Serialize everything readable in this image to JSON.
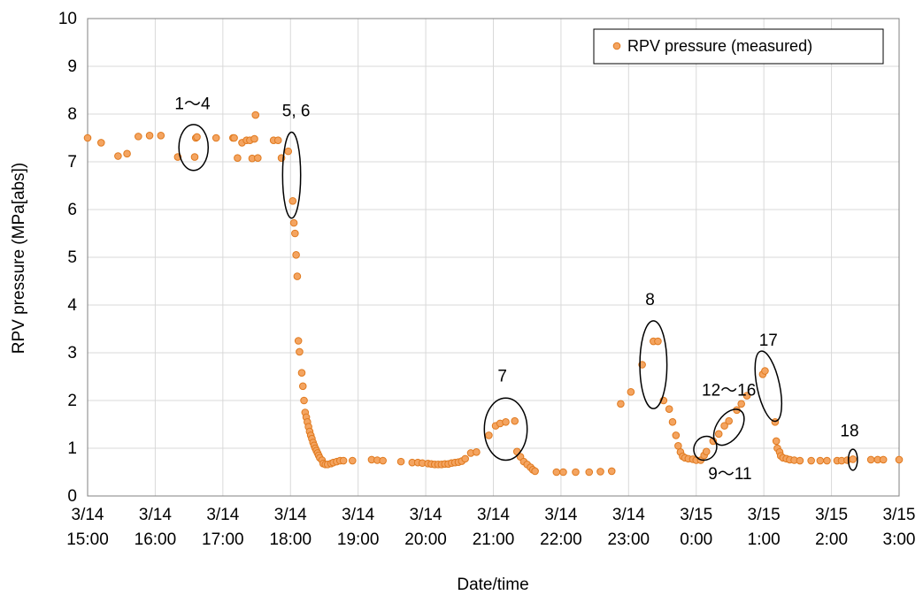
{
  "chart_data": {
    "type": "scatter",
    "xlabel": "Date/time",
    "ylabel": "RPV pressure (MPa[abs])",
    "xlim": [
      "3/14 15:00",
      "3/15 3:00"
    ],
    "ylim": [
      0,
      10
    ],
    "yticks": [
      "0",
      "1",
      "2",
      "3",
      "4",
      "5",
      "6",
      "7",
      "8",
      "9",
      "10"
    ],
    "xticks": [
      {
        "date": "3/14",
        "time": "15:00"
      },
      {
        "date": "3/14",
        "time": "16:00"
      },
      {
        "date": "3/14",
        "time": "17:00"
      },
      {
        "date": "3/14",
        "time": "18:00"
      },
      {
        "date": "3/14",
        "time": "19:00"
      },
      {
        "date": "3/14",
        "time": "20:00"
      },
      {
        "date": "3/14",
        "time": "21:00"
      },
      {
        "date": "3/14",
        "time": "22:00"
      },
      {
        "date": "3/14",
        "time": "23:00"
      },
      {
        "date": "3/15",
        "time": "0:00"
      },
      {
        "date": "3/15",
        "time": "1:00"
      },
      {
        "date": "3/15",
        "time": "2:00"
      },
      {
        "date": "3/15",
        "time": "3:00"
      }
    ],
    "grid": true,
    "legend_position": "top-right",
    "series": [
      {
        "name": "RPV pressure (measured)",
        "color": "#f4a460",
        "edge_color": "#e07a1f",
        "points": [
          [
            "3/14 15:00",
            7.5
          ],
          [
            "3/14 15:12",
            7.4
          ],
          [
            "3/14 15:27",
            7.12
          ],
          [
            "3/14 15:35",
            7.17
          ],
          [
            "3/14 15:45",
            7.53
          ],
          [
            "3/14 15:55",
            7.55
          ],
          [
            "3/14 16:05",
            7.55
          ],
          [
            "3/14 16:20",
            7.1
          ],
          [
            "3/14 16:35",
            7.1
          ],
          [
            "3/14 16:36",
            7.5
          ],
          [
            "3/14 16:37",
            7.52
          ],
          [
            "3/14 16:54",
            7.5
          ],
          [
            "3/14 17:09",
            7.5
          ],
          [
            "3/14 17:10",
            7.5
          ],
          [
            "3/14 17:13",
            7.08
          ],
          [
            "3/14 17:17",
            7.4
          ],
          [
            "3/14 17:21",
            7.45
          ],
          [
            "3/14 17:24",
            7.45
          ],
          [
            "3/14 17:26",
            7.07
          ],
          [
            "3/14 17:28",
            7.48
          ],
          [
            "3/14 17:29",
            7.98
          ],
          [
            "3/14 17:31",
            7.08
          ],
          [
            "3/14 17:45",
            7.45
          ],
          [
            "3/14 17:49",
            7.45
          ],
          [
            "3/14 17:52",
            7.08
          ],
          [
            "3/14 17:58",
            7.22
          ],
          [
            "3/14 18:02",
            6.18
          ],
          [
            "3/14 18:03",
            5.72
          ],
          [
            "3/14 18:04",
            5.5
          ],
          [
            "3/14 18:05",
            5.05
          ],
          [
            "3/14 18:06",
            4.6
          ],
          [
            "3/14 18:07",
            3.25
          ],
          [
            "3/14 18:08",
            3.02
          ],
          [
            "3/14 18:10",
            2.58
          ],
          [
            "3/14 18:11",
            2.3
          ],
          [
            "3/14 18:12",
            2.0
          ],
          [
            "3/14 18:13",
            1.75
          ],
          [
            "3/14 18:14",
            1.65
          ],
          [
            "3/14 18:15",
            1.55
          ],
          [
            "3/14 18:16",
            1.45
          ],
          [
            "3/14 18:17",
            1.35
          ],
          [
            "3/14 18:18",
            1.27
          ],
          [
            "3/14 18:19",
            1.2
          ],
          [
            "3/14 18:20",
            1.12
          ],
          [
            "3/14 18:21",
            1.06
          ],
          [
            "3/14 18:22",
            1.0
          ],
          [
            "3/14 18:23",
            0.95
          ],
          [
            "3/14 18:24",
            0.9
          ],
          [
            "3/14 18:25",
            0.85
          ],
          [
            "3/14 18:26",
            0.8
          ],
          [
            "3/14 18:28",
            0.75
          ],
          [
            "3/14 18:29",
            0.68
          ],
          [
            "3/14 18:31",
            0.66
          ],
          [
            "3/14 18:33",
            0.66
          ],
          [
            "3/14 18:36",
            0.68
          ],
          [
            "3/14 18:38",
            0.7
          ],
          [
            "3/14 18:41",
            0.72
          ],
          [
            "3/14 18:44",
            0.74
          ],
          [
            "3/14 18:47",
            0.74
          ],
          [
            "3/14 18:55",
            0.74
          ],
          [
            "3/14 19:12",
            0.76
          ],
          [
            "3/14 19:17",
            0.75
          ],
          [
            "3/14 19:22",
            0.74
          ],
          [
            "3/14 19:38",
            0.72
          ],
          [
            "3/14 19:48",
            0.7
          ],
          [
            "3/14 19:53",
            0.7
          ],
          [
            "3/14 19:57",
            0.69
          ],
          [
            "3/14 20:02",
            0.68
          ],
          [
            "3/14 20:05",
            0.67
          ],
          [
            "3/14 20:08",
            0.66
          ],
          [
            "3/14 20:11",
            0.66
          ],
          [
            "3/14 20:14",
            0.66
          ],
          [
            "3/14 20:17",
            0.67
          ],
          [
            "3/14 20:20",
            0.67
          ],
          [
            "3/14 20:23",
            0.69
          ],
          [
            "3/14 20:26",
            0.7
          ],
          [
            "3/14 20:29",
            0.71
          ],
          [
            "3/14 20:32",
            0.73
          ],
          [
            "3/14 20:35",
            0.78
          ],
          [
            "3/14 20:40",
            0.9
          ],
          [
            "3/14 20:45",
            0.92
          ],
          [
            "3/14 20:56",
            1.27
          ],
          [
            "3/14 21:02",
            1.47
          ],
          [
            "3/14 21:06",
            1.52
          ],
          [
            "3/14 21:11",
            1.55
          ],
          [
            "3/14 21:19",
            1.57
          ],
          [
            "3/14 21:21",
            0.93
          ],
          [
            "3/14 21:24",
            0.82
          ],
          [
            "3/14 21:27",
            0.72
          ],
          [
            "3/14 21:30",
            0.66
          ],
          [
            "3/14 21:33",
            0.6
          ],
          [
            "3/14 21:35",
            0.55
          ],
          [
            "3/14 21:37",
            0.52
          ],
          [
            "3/14 21:56",
            0.5
          ],
          [
            "3/14 22:02",
            0.5
          ],
          [
            "3/14 22:13",
            0.5
          ],
          [
            "3/14 22:25",
            0.5
          ],
          [
            "3/14 22:35",
            0.51
          ],
          [
            "3/14 22:45",
            0.52
          ],
          [
            "3/14 22:53",
            1.93
          ],
          [
            "3/14 23:02",
            2.18
          ],
          [
            "3/14 23:12",
            2.75
          ],
          [
            "3/14 23:22",
            3.24
          ],
          [
            "3/14 23:26",
            3.24
          ],
          [
            "3/14 23:31",
            2.0
          ],
          [
            "3/14 23:36",
            1.82
          ],
          [
            "3/14 23:39",
            1.55
          ],
          [
            "3/14 23:42",
            1.27
          ],
          [
            "3/14 23:44",
            1.05
          ],
          [
            "3/14 23:46",
            0.92
          ],
          [
            "3/14 23:48",
            0.83
          ],
          [
            "3/14 23:50",
            0.8
          ],
          [
            "3/14 23:53",
            0.78
          ],
          [
            "3/14 23:57",
            0.77
          ],
          [
            "3/15 0:00",
            0.75
          ],
          [
            "3/15 0:04",
            0.75
          ],
          [
            "3/15 0:07",
            0.85
          ],
          [
            "3/15 0:09",
            0.93
          ],
          [
            "3/15 0:15",
            1.15
          ],
          [
            "3/15 0:20",
            1.3
          ],
          [
            "3/15 0:25",
            1.47
          ],
          [
            "3/15 0:29",
            1.57
          ],
          [
            "3/15 0:36",
            1.8
          ],
          [
            "3/15 0:40",
            1.93
          ],
          [
            "3/15 0:45",
            2.1
          ],
          [
            "3/15 0:59",
            2.55
          ],
          [
            "3/15 1:01",
            2.62
          ],
          [
            "3/15 1:10",
            1.55
          ],
          [
            "3/15 1:11",
            1.15
          ],
          [
            "3/15 1:12",
            1.0
          ],
          [
            "3/15 1:14",
            0.92
          ],
          [
            "3/15 1:15",
            0.84
          ],
          [
            "3/15 1:17",
            0.8
          ],
          [
            "3/15 1:20",
            0.78
          ],
          [
            "3/15 1:23",
            0.76
          ],
          [
            "3/15 1:27",
            0.75
          ],
          [
            "3/15 1:32",
            0.74
          ],
          [
            "3/15 1:42",
            0.74
          ],
          [
            "3/15 1:50",
            0.74
          ],
          [
            "3/15 1:56",
            0.74
          ],
          [
            "3/15 2:05",
            0.74
          ],
          [
            "3/15 2:09",
            0.74
          ],
          [
            "3/15 2:14",
            0.75
          ],
          [
            "3/15 2:19",
            0.77
          ],
          [
            "3/15 2:35",
            0.76
          ],
          [
            "3/15 2:41",
            0.76
          ],
          [
            "3/15 2:46",
            0.76
          ],
          [
            "3/15 3:00",
            0.76
          ]
        ]
      }
    ],
    "annotations": [
      {
        "label": "1〜4",
        "at": [
          "3/14 16:33",
          8.1
        ]
      },
      {
        "label": "5, 6",
        "at": [
          "3/14 18:05",
          7.95
        ]
      },
      {
        "label": "7",
        "at": [
          "3/14 21:08",
          2.4
        ]
      },
      {
        "label": "8",
        "at": [
          "3/14 23:19",
          4.0
        ]
      },
      {
        "label": "12〜16",
        "at": [
          "3/15 0:29",
          2.1
        ]
      },
      {
        "label": "9〜11",
        "at": [
          "3/15 0:30",
          0.35
        ]
      },
      {
        "label": "17",
        "at": [
          "3/15 1:04",
          3.15
        ]
      },
      {
        "label": "18",
        "at": [
          "3/15 2:16",
          1.25
        ]
      }
    ],
    "ellipses": [
      {
        "center": [
          "3/14 16:34",
          7.3
        ],
        "rx_minutes": 13,
        "ry": 0.48
      },
      {
        "center": [
          "3/14 18:01",
          6.72
        ],
        "rx_minutes": 8,
        "ry": 0.9
      },
      {
        "center": [
          "3/14 21:11",
          1.4
        ],
        "rx_minutes": 19,
        "ry": 0.65
      },
      {
        "center": [
          "3/14 23:22",
          2.75
        ],
        "rx_minutes": 12,
        "ry": 0.92
      },
      {
        "center": [
          "3/15 0:29",
          1.44
        ],
        "rx_minutes": 18,
        "ry": 0.25,
        "angle": -55
      },
      {
        "center": [
          "3/15 0:08",
          1.0
        ],
        "rx_minutes": 11,
        "ry": 0.23,
        "angle": -55
      },
      {
        "center": [
          "3/15 1:04",
          2.3
        ],
        "rx_minutes": 10,
        "ry": 0.75,
        "angle": -12
      },
      {
        "center": [
          "3/15 2:19",
          0.76
        ],
        "rx_minutes": 4,
        "ry": 0.22
      }
    ]
  }
}
